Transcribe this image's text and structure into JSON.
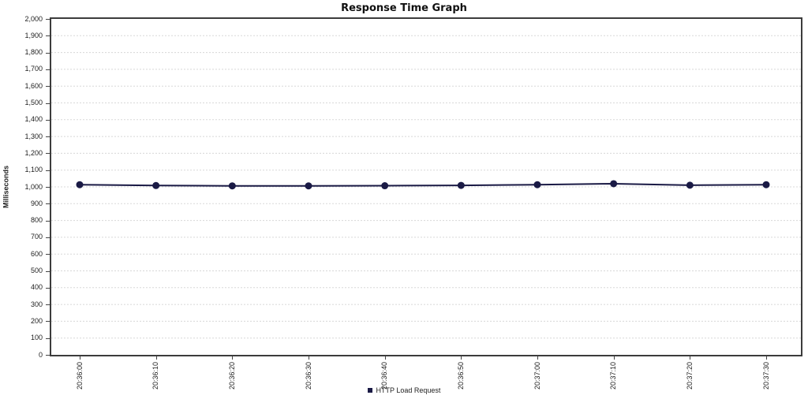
{
  "title": "Response Time Graph",
  "legend": {
    "label": "HTTP Load Request"
  },
  "chart_data": {
    "type": "line",
    "title": "Response Time Graph",
    "xlabel": "",
    "ylabel": "Milliseconds",
    "categories": [
      "20:36:00",
      "20:36:10",
      "20:36:20",
      "20:36:30",
      "20:36:40",
      "20:36:50",
      "20:37:00",
      "20:37:10",
      "20:37:20",
      "20:37:30"
    ],
    "series": [
      {
        "name": "HTTP Load Request",
        "color": "#1a1a45",
        "values": [
          1013,
          1008,
          1006,
          1006,
          1007,
          1009,
          1013,
          1019,
          1010,
          1013
        ]
      }
    ],
    "ylim": [
      0,
      2000
    ],
    "y_tick_step": 100,
    "y_tick_labels": [
      "0",
      "100",
      "200",
      "300",
      "400",
      "500",
      "600",
      "700",
      "800",
      "900",
      "1,000",
      "1,100",
      "1,200",
      "1,300",
      "1,400",
      "1,500",
      "1,600",
      "1,700",
      "1,800",
      "1,900",
      "2,000"
    ],
    "grid": true,
    "legend_position": "bottom",
    "x_tick_rotation": -90
  },
  "colors": {
    "series": "#1a1a45",
    "grid": "#d8d8d8",
    "plot_border": "#3c3c3c",
    "text": "#222222",
    "background": "#ffffff"
  }
}
